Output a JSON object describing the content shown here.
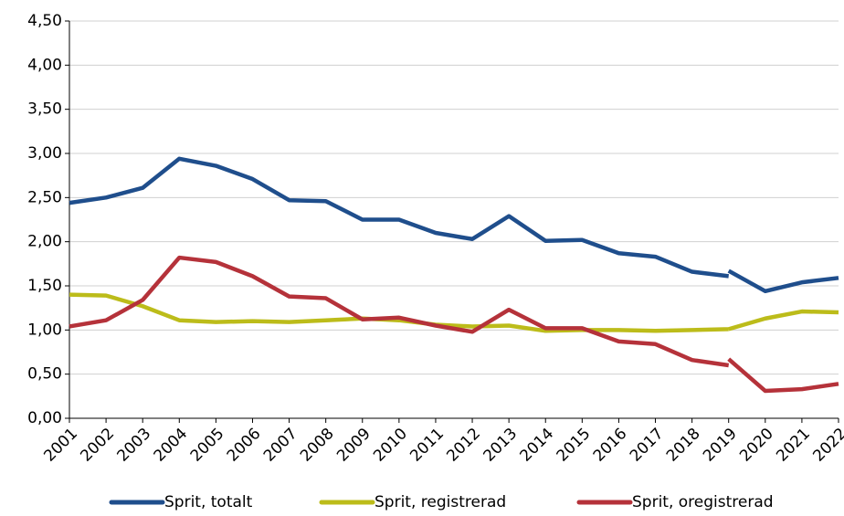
{
  "chart_data": {
    "type": "line",
    "x": [
      2001,
      2002,
      2003,
      2004,
      2005,
      2006,
      2007,
      2008,
      2009,
      2010,
      2011,
      2012,
      2013,
      2014,
      2015,
      2016,
      2017,
      2018,
      2019,
      null,
      2019,
      2020,
      2021,
      2022
    ],
    "series": [
      {
        "name": "Sprit, totalt",
        "color": "#1f4e8c",
        "values": [
          2.44,
          2.5,
          2.61,
          2.94,
          2.86,
          2.71,
          2.47,
          2.46,
          2.25,
          2.25,
          2.1,
          2.03,
          2.29,
          2.01,
          2.02,
          1.87,
          1.83,
          1.66,
          1.61,
          null,
          1.67,
          1.44,
          1.54,
          1.59
        ]
      },
      {
        "name": "Sprit, registrerad",
        "color": "#bcbc1a",
        "values": [
          1.4,
          1.39,
          1.27,
          1.11,
          1.09,
          1.1,
          1.09,
          1.11,
          1.13,
          1.11,
          1.06,
          1.04,
          1.05,
          0.99,
          1.0,
          1.0,
          0.99,
          1.0,
          1.01,
          null,
          1.01,
          1.13,
          1.21,
          1.2
        ]
      },
      {
        "name": "Sprit, oregistrerad",
        "color": "#b5323a",
        "values": [
          1.04,
          1.11,
          1.34,
          1.82,
          1.77,
          1.61,
          1.38,
          1.36,
          1.12,
          1.14,
          1.05,
          0.98,
          1.23,
          1.02,
          1.02,
          0.87,
          0.84,
          0.66,
          0.6,
          null,
          0.67,
          0.31,
          0.33,
          0.39
        ]
      }
    ],
    "xlim": [
      2001,
      2022
    ],
    "xticks": [
      2001,
      2002,
      2003,
      2004,
      2005,
      2006,
      2007,
      2008,
      2009,
      2010,
      2011,
      2012,
      2013,
      2014,
      2015,
      2016,
      2017,
      2018,
      2019,
      2020,
      2021,
      2022
    ],
    "ylim": [
      0,
      4.5
    ],
    "yticks": [
      {
        "value": 0,
        "label": "0,00"
      },
      {
        "value": 0.5,
        "label": "0,50"
      },
      {
        "value": 1,
        "label": "1,00"
      },
      {
        "value": 1.5,
        "label": "1,50"
      },
      {
        "value": 2,
        "label": "2,00"
      },
      {
        "value": 2.5,
        "label": "2,50"
      },
      {
        "value": 3,
        "label": "3,00"
      },
      {
        "value": 3.5,
        "label": "3,50"
      },
      {
        "value": 4,
        "label": "4,00"
      },
      {
        "value": 4.5,
        "label": "4,50"
      }
    ],
    "grid": true,
    "legend": "bottom"
  }
}
